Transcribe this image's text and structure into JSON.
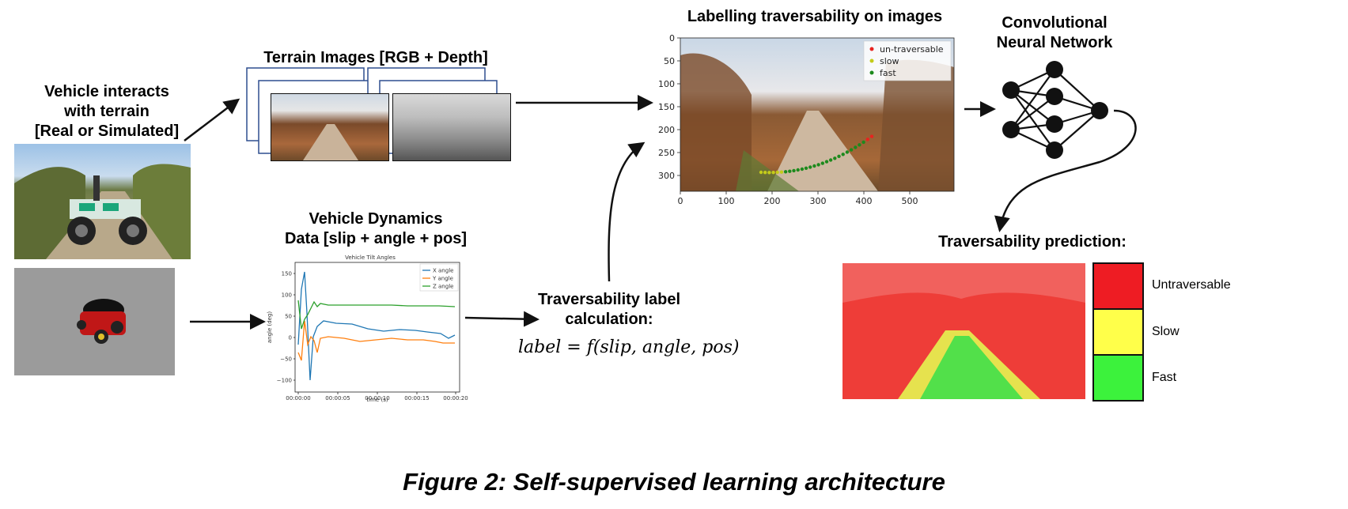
{
  "labels": {
    "vehicle": [
      "Vehicle interacts",
      "with terrain",
      "[Real or Simulated]"
    ],
    "terrain_images": "Terrain Images [RGB + Depth]",
    "dynamics": [
      "Vehicle Dynamics",
      "Data [slip + angle + pos]"
    ],
    "labelling": "Labelling traversability on images",
    "cnn": [
      "Convolutional",
      "Neural Network"
    ],
    "label_calc": [
      "Traversability label",
      "calculation:"
    ],
    "formula": "label = f(slip, angle, pos)",
    "prediction": "Traversability prediction:",
    "caption": "Figure 2: Self-supervised learning architecture"
  },
  "prediction_legend": [
    {
      "label": "Untraversable",
      "color": "#ee1c23"
    },
    {
      "label": "Slow",
      "color": "#ffff4a"
    },
    {
      "label": "Fast",
      "color": "#3cf23c"
    }
  ],
  "tilt_chart": {
    "title": "Vehicle Tilt Angles",
    "ylabel": "angle (deg)",
    "xlabel": "time (s)",
    "yticks": [
      "150",
      "100",
      "50",
      "0",
      "−50",
      "−100"
    ],
    "xticks": [
      "00:00:00",
      "00:00:05",
      "00:00:10",
      "00:00:15",
      "00:00:20"
    ],
    "legend": [
      "X angle",
      "Y angle",
      "Z angle"
    ],
    "colors": [
      "#1f77b4",
      "#ff7f0e",
      "#2ca02c"
    ]
  },
  "label_plot": {
    "xticks": [
      "0",
      "100",
      "200",
      "300",
      "400",
      "500"
    ],
    "yticks": [
      "0",
      "50",
      "100",
      "150",
      "200",
      "250",
      "300"
    ],
    "legend": [
      {
        "label": "un-traversable",
        "color": "#e8231f"
      },
      {
        "label": "slow",
        "color": "#c4cc1a"
      },
      {
        "label": "fast",
        "color": "#1d8a1d"
      }
    ]
  }
}
